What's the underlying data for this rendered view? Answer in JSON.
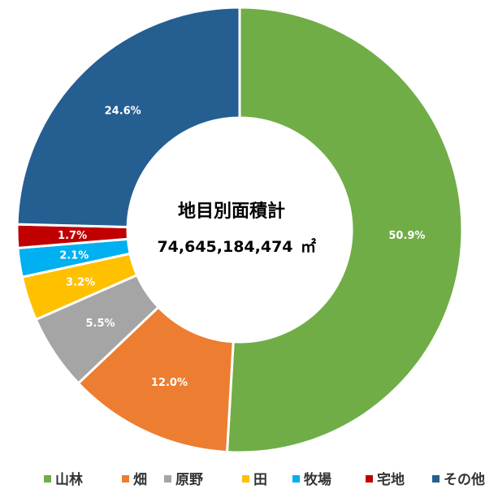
{
  "chart_data": {
    "type": "pie",
    "variant": "donut",
    "title": "地目別面積計",
    "total": "74,645,184,474",
    "total_unit": "㎡",
    "categories": [
      "山林",
      "畑",
      "原野",
      "田",
      "牧場",
      "宅地",
      "その他"
    ],
    "values": [
      50.9,
      12.0,
      5.5,
      3.2,
      2.1,
      1.7,
      24.6
    ],
    "labels": [
      "50.9%",
      "12.0%",
      "5.5%",
      "3.2%",
      "2.1%",
      "1.7%",
      "24.6%"
    ],
    "colors": [
      "#70AD47",
      "#ED7D31",
      "#A5A5A5",
      "#FFC000",
      "#00B0F0",
      "#C00000",
      "#255E91"
    ],
    "label_colors": [
      "#ffffff",
      "#ffffff",
      "#ffffff",
      "#ffffff",
      "#ffffff",
      "#ffffff",
      "#ffffff"
    ],
    "legend_position": "bottom",
    "start": "top, clockwise"
  }
}
